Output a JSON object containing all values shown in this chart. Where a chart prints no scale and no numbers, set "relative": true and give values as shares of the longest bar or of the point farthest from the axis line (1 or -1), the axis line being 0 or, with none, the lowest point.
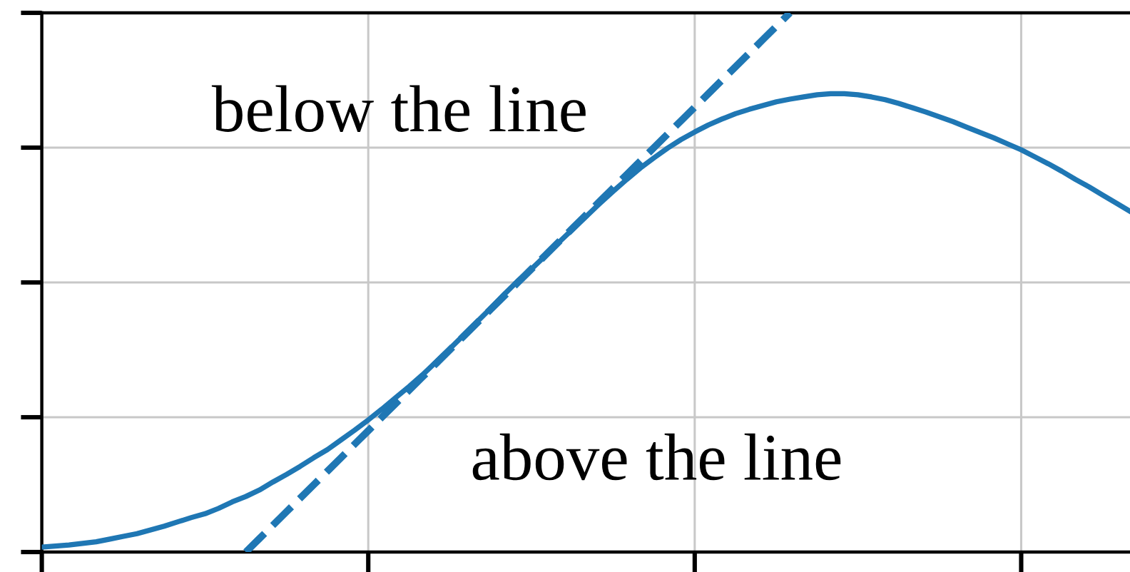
{
  "chart_data": {
    "type": "line",
    "relative": true,
    "grid": true,
    "tick_labels": false,
    "categories": [
      null,
      null,
      null,
      null,
      null,
      null,
      null,
      null,
      null,
      null,
      null,
      null,
      null,
      null,
      null,
      null,
      null,
      null,
      null,
      null,
      null,
      null,
      null,
      null,
      null,
      null,
      null,
      null,
      null,
      null,
      null,
      null,
      null,
      null,
      null,
      null,
      null,
      null,
      null,
      null,
      null,
      null,
      null,
      null,
      null,
      null,
      null,
      null,
      null,
      null,
      null,
      null,
      null,
      null,
      null,
      null,
      null,
      null,
      null,
      null,
      null,
      null,
      null,
      null,
      null,
      null,
      null,
      null,
      null,
      null,
      null,
      null,
      null,
      null,
      null,
      null,
      null,
      null,
      null,
      null,
      null
    ],
    "series": [
      {
        "color": "#1f77b4",
        "line_style": "solid",
        "values": [
          0.009,
          0.011,
          0.013,
          0.016,
          0.019,
          0.024,
          0.029,
          0.034,
          0.041,
          0.048,
          0.056,
          0.064,
          0.071,
          0.081,
          0.093,
          0.103,
          0.115,
          0.13,
          0.144,
          0.159,
          0.175,
          0.19,
          0.208,
          0.226,
          0.245,
          0.265,
          0.286,
          0.307,
          0.329,
          0.353,
          0.377,
          0.402,
          0.427,
          0.452,
          0.478,
          0.503,
          0.525,
          0.549,
          0.574,
          0.598,
          0.622,
          0.646,
          0.669,
          0.691,
          0.712,
          0.731,
          0.749,
          0.765,
          0.779,
          0.792,
          0.803,
          0.813,
          0.821,
          0.828,
          0.835,
          0.84,
          0.844,
          0.848,
          0.85,
          0.85,
          0.848,
          0.844,
          0.839,
          0.832,
          0.824,
          0.816,
          0.807,
          0.798,
          0.788,
          0.778,
          0.768,
          0.757,
          0.746,
          0.733,
          0.72,
          0.706,
          0.691,
          0.677,
          0.662,
          0.647,
          0.632
        ]
      },
      {
        "color": "#1f77b4",
        "line_style": "dashed",
        "values": [
          null,
          null,
          null,
          null,
          null,
          null,
          null,
          null,
          null,
          null,
          null,
          null,
          null,
          null,
          null,
          0,
          0.025,
          0.05,
          0.075,
          0.1,
          0.125,
          0.15,
          0.175,
          0.2,
          0.225,
          0.25,
          0.275,
          0.3,
          0.325,
          0.35,
          0.375,
          0.4,
          0.425,
          0.45,
          0.475,
          0.5,
          0.525,
          0.55,
          0.575,
          0.6,
          0.625,
          0.65,
          0.675,
          0.7,
          0.725,
          0.75,
          0.775,
          0.8,
          0.825,
          0.85,
          0.875,
          0.9,
          0.925,
          0.95,
          0.975,
          1,
          null,
          null,
          null,
          null,
          null,
          null,
          null,
          null,
          null,
          null,
          null,
          null,
          null,
          null,
          null,
          null,
          null,
          null,
          null,
          null,
          null,
          null,
          null,
          null,
          null
        ]
      }
    ],
    "annotations": [
      "below the line",
      "above the line"
    ]
  }
}
